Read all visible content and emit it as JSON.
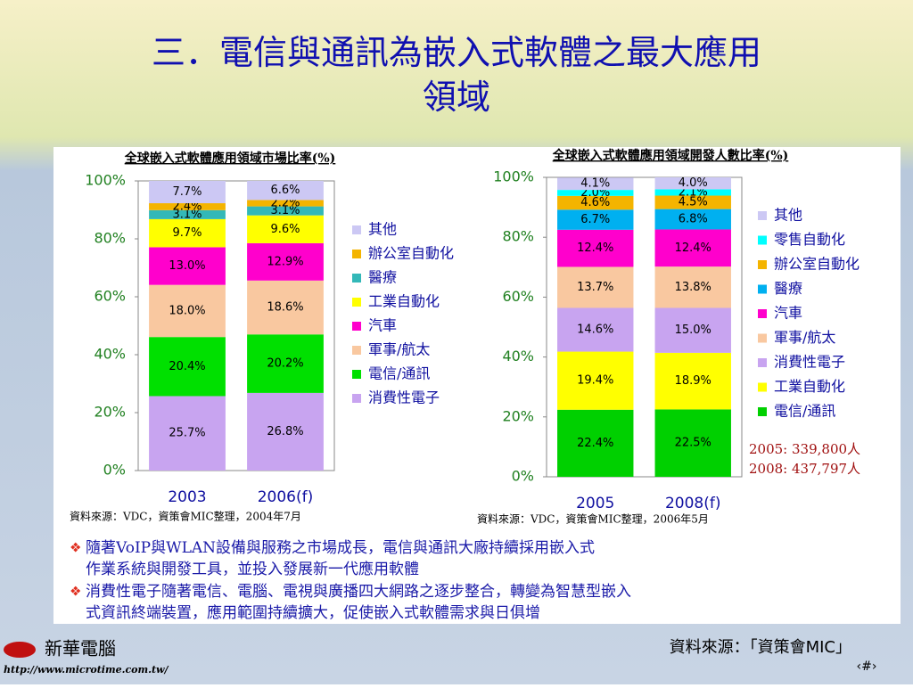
{
  "slide": {
    "title": "三．電信與通訊為嵌入式軟體之最大應用領域",
    "bullets": [
      "隨著VoIP與WLAN設備與服務之市場成長，電信與通訊大廠持續採用嵌入式作業系統與開發工具，並投入發展新一代應用軟體",
      "消費性電子隨著電信、電腦、電視與廣播四大網路之逐步整合，轉變為智慧型嵌入式資訊終端裝置，應用範圍持續擴大，促使嵌入式軟體需求與日俱增"
    ],
    "source": "資料來源：「資策會MIC」",
    "logo": "新華電腦",
    "url": "http://www.microtime.com.tw/",
    "page": "‹#›"
  },
  "chart_data": [
    {
      "type": "bar",
      "stacked": true,
      "title": "全球嵌入式軟體應用領域市場比率(%)",
      "categories": [
        "2003",
        "2006(f)"
      ],
      "ylim": [
        0,
        100
      ],
      "yticks": [
        {
          "value": 0,
          "label": "0%"
        },
        {
          "value": 20,
          "label": "20%"
        },
        {
          "value": 40,
          "label": "40%"
        },
        {
          "value": 60,
          "label": "60%"
        },
        {
          "value": 80,
          "label": "80%"
        },
        {
          "value": 100,
          "label": "100%"
        }
      ],
      "source": "資料來源：VDC，資策會MIC整理，2004年7月",
      "series": [
        {
          "name": "消費性電子",
          "color": "#c8a4f0",
          "values": [
            25.7,
            26.8
          ],
          "value_labels": [
            "25.7%",
            "26.8%"
          ]
        },
        {
          "name": "電信/通訊",
          "color": "#00e000",
          "values": [
            20.4,
            20.2
          ],
          "value_labels": [
            "20.4%",
            "20.2%"
          ]
        },
        {
          "name": "軍事/航太",
          "color": "#f9c8a0",
          "values": [
            18.0,
            18.6
          ],
          "value_labels": [
            "18.0%",
            "18.6%"
          ]
        },
        {
          "name": "汽車",
          "color": "#ff00cc",
          "values": [
            13.0,
            12.9
          ],
          "value_labels": [
            "13.0%",
            "12.9%"
          ]
        },
        {
          "name": "工業自動化",
          "color": "#ffff00",
          "values": [
            9.7,
            9.6
          ],
          "value_labels": [
            "9.7%",
            "9.6%"
          ]
        },
        {
          "name": "醫療",
          "color": "#33b8b8",
          "values": [
            3.1,
            3.1
          ],
          "value_labels": [
            "3.1%",
            "3.1%"
          ]
        },
        {
          "name": "辦公室自動化",
          "color": "#f4b400",
          "values": [
            2.4,
            2.2
          ],
          "value_labels": [
            "2.4%",
            "2.2%"
          ]
        },
        {
          "name": "其他",
          "color": "#ccc8f4",
          "values": [
            7.7,
            6.6
          ],
          "value_labels": [
            "7.7%",
            "6.6%"
          ]
        }
      ]
    },
    {
      "type": "bar",
      "stacked": true,
      "title": "全球嵌入式軟體應用領域開發人數比率(%)",
      "categories": [
        "2005",
        "2008(f)"
      ],
      "ylim": [
        0,
        100
      ],
      "yticks": [
        {
          "value": 0,
          "label": "0%"
        },
        {
          "value": 20,
          "label": "20%"
        },
        {
          "value": 40,
          "label": "40%"
        },
        {
          "value": 60,
          "label": "60%"
        },
        {
          "value": 80,
          "label": "80%"
        },
        {
          "value": 100,
          "label": "100%"
        }
      ],
      "source": "資料來源：VDC，資策會MIC整理，2006年5月",
      "annotations": [
        "2005: 339,800人",
        "2008: 437,797人"
      ],
      "series": [
        {
          "name": "電信/通訊",
          "color": "#00d000",
          "values": [
            22.4,
            22.5
          ],
          "value_labels": [
            "22.4%",
            "22.5%"
          ]
        },
        {
          "name": "工業自動化",
          "color": "#ffff00",
          "values": [
            19.4,
            18.9
          ],
          "value_labels": [
            "19.4%",
            "18.9%"
          ]
        },
        {
          "name": "消費性電子",
          "color": "#c8a4f0",
          "values": [
            14.6,
            15.0
          ],
          "value_labels": [
            "14.6%",
            "15.0%"
          ]
        },
        {
          "name": "軍事/航太",
          "color": "#f9c8a0",
          "values": [
            13.7,
            13.8
          ],
          "value_labels": [
            "13.7%",
            "13.8%"
          ]
        },
        {
          "name": "汽車",
          "color": "#ff00cc",
          "values": [
            12.4,
            12.4
          ],
          "value_labels": [
            "12.4%",
            "12.4%"
          ]
        },
        {
          "name": "醫療",
          "color": "#00b0f0",
          "values": [
            6.7,
            6.8
          ],
          "value_labels": [
            "6.7%",
            "6.8%"
          ]
        },
        {
          "name": "辦公室自動化",
          "color": "#f4b400",
          "values": [
            4.6,
            4.5
          ],
          "value_labels": [
            "4.6%",
            "4.5%"
          ]
        },
        {
          "name": "零售自動化",
          "color": "#00ffff",
          "values": [
            2.0,
            2.1
          ],
          "value_labels": [
            "2.0%",
            "2.1%"
          ]
        },
        {
          "name": "其他",
          "color": "#ccc8f4",
          "values": [
            4.1,
            4.0
          ],
          "value_labels": [
            "4.1%",
            "4.0%"
          ]
        }
      ]
    }
  ]
}
